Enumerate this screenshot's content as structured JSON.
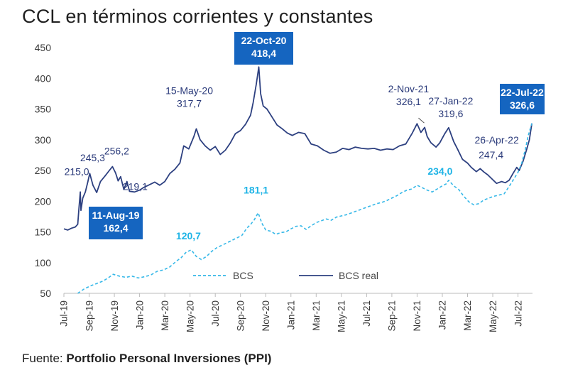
{
  "title": "CCL en términos corrientes y constantes",
  "source": {
    "label": "Fuente:",
    "text": "Portfolio Personal Inversiones (PPI)"
  },
  "colors": {
    "real": "#2d4080",
    "bcs": "#36b8e8",
    "box": "#1565c0",
    "axis": "#bbbbbb"
  },
  "chart_data": {
    "type": "line",
    "title": "CCL en términos corrientes y constantes",
    "xlabel": "",
    "ylabel": "",
    "ylim": [
      50,
      450
    ],
    "yticks": [
      50,
      100,
      150,
      200,
      250,
      300,
      350,
      400,
      450
    ],
    "xticks": [
      {
        "label": "Jul-19",
        "t": 0
      },
      {
        "label": "Sep-19",
        "t": 2
      },
      {
        "label": "Nov-19",
        "t": 4
      },
      {
        "label": "Jan-20",
        "t": 6
      },
      {
        "label": "Mar-20",
        "t": 8
      },
      {
        "label": "May-20",
        "t": 10
      },
      {
        "label": "Jul-20",
        "t": 12
      },
      {
        "label": "Sep-20",
        "t": 14
      },
      {
        "label": "Nov-20",
        "t": 16
      },
      {
        "label": "Jan-21",
        "t": 18
      },
      {
        "label": "Mar-21",
        "t": 20
      },
      {
        "label": "May-21",
        "t": 22
      },
      {
        "label": "Jul-21",
        "t": 24
      },
      {
        "label": "Sep-21",
        "t": 26
      },
      {
        "label": "Nov-21",
        "t": 28
      },
      {
        "label": "Jan-22",
        "t": 30
      },
      {
        "label": "Mar-22",
        "t": 32
      },
      {
        "label": "May-22",
        "t": 34
      },
      {
        "label": "Jul-22",
        "t": 36
      }
    ],
    "x_unit": "months since Jul-2019",
    "series": [
      {
        "name": "BCS real",
        "style": "solid",
        "points": [
          [
            0.0,
            155
          ],
          [
            0.3,
            153
          ],
          [
            0.6,
            156
          ],
          [
            0.9,
            158
          ],
          [
            1.1,
            162.4
          ],
          [
            1.2,
            190
          ],
          [
            1.3,
            215
          ],
          [
            1.35,
            185
          ],
          [
            1.5,
            205
          ],
          [
            1.7,
            215
          ],
          [
            1.9,
            232
          ],
          [
            2.05,
            245.3
          ],
          [
            2.3,
            226
          ],
          [
            2.6,
            214
          ],
          [
            2.9,
            232
          ],
          [
            3.3,
            242
          ],
          [
            3.6,
            250
          ],
          [
            3.85,
            256.2
          ],
          [
            4.1,
            246
          ],
          [
            4.3,
            233
          ],
          [
            4.5,
            240
          ],
          [
            4.75,
            219.1
          ],
          [
            5.0,
            232
          ],
          [
            5.2,
            216
          ],
          [
            5.6,
            215
          ],
          [
            6.0,
            218
          ],
          [
            6.3,
            222
          ],
          [
            6.7,
            226
          ],
          [
            7.2,
            231
          ],
          [
            7.6,
            226
          ],
          [
            8.0,
            232
          ],
          [
            8.4,
            245
          ],
          [
            8.8,
            252
          ],
          [
            9.2,
            262
          ],
          [
            9.5,
            290
          ],
          [
            9.9,
            285
          ],
          [
            10.3,
            305
          ],
          [
            10.5,
            317.7
          ],
          [
            10.8,
            300
          ],
          [
            11.2,
            290
          ],
          [
            11.6,
            283
          ],
          [
            12.0,
            289
          ],
          [
            12.4,
            276
          ],
          [
            12.8,
            283
          ],
          [
            13.2,
            295
          ],
          [
            13.6,
            310
          ],
          [
            14.0,
            315
          ],
          [
            14.4,
            325
          ],
          [
            14.8,
            340
          ],
          [
            15.0,
            360
          ],
          [
            15.25,
            390
          ],
          [
            15.45,
            418.4
          ],
          [
            15.6,
            375
          ],
          [
            15.8,
            355
          ],
          [
            16.1,
            350
          ],
          [
            16.5,
            337
          ],
          [
            16.9,
            324
          ],
          [
            17.3,
            318
          ],
          [
            17.7,
            311
          ],
          [
            18.1,
            307
          ],
          [
            18.6,
            312
          ],
          [
            19.1,
            310
          ],
          [
            19.6,
            293
          ],
          [
            20.1,
            290
          ],
          [
            20.6,
            283
          ],
          [
            21.1,
            278
          ],
          [
            21.6,
            280
          ],
          [
            22.1,
            286
          ],
          [
            22.6,
            284
          ],
          [
            23.1,
            288
          ],
          [
            23.6,
            286
          ],
          [
            24.1,
            285
          ],
          [
            24.6,
            286
          ],
          [
            25.1,
            283
          ],
          [
            25.6,
            285
          ],
          [
            26.1,
            284
          ],
          [
            26.6,
            290
          ],
          [
            27.1,
            293
          ],
          [
            27.6,
            310
          ],
          [
            28.0,
            326.1
          ],
          [
            28.3,
            312
          ],
          [
            28.6,
            320
          ],
          [
            28.8,
            305
          ],
          [
            29.1,
            295
          ],
          [
            29.5,
            288
          ],
          [
            29.8,
            295
          ],
          [
            30.2,
            310
          ],
          [
            30.5,
            319.6
          ],
          [
            30.9,
            297
          ],
          [
            31.2,
            285
          ],
          [
            31.6,
            268
          ],
          [
            32.0,
            262
          ],
          [
            32.3,
            255
          ],
          [
            32.7,
            248
          ],
          [
            33.0,
            253
          ],
          [
            33.3,
            247.4
          ],
          [
            33.6,
            243
          ],
          [
            34.0,
            235
          ],
          [
            34.3,
            229
          ],
          [
            34.7,
            232
          ],
          [
            35.0,
            230
          ],
          [
            35.3,
            234
          ],
          [
            35.6,
            245
          ],
          [
            35.9,
            255
          ],
          [
            36.1,
            250
          ],
          [
            36.4,
            265
          ],
          [
            36.7,
            285
          ],
          [
            36.9,
            300
          ],
          [
            37.1,
            326.6
          ]
        ]
      },
      {
        "name": "BCS",
        "style": "dashed",
        "points": [
          [
            1.1,
            50
          ],
          [
            1.6,
            57
          ],
          [
            2.1,
            62
          ],
          [
            2.6,
            66
          ],
          [
            3.1,
            70
          ],
          [
            3.5,
            75
          ],
          [
            3.9,
            81
          ],
          [
            4.4,
            78
          ],
          [
            4.9,
            76
          ],
          [
            5.4,
            78
          ],
          [
            5.9,
            75
          ],
          [
            6.4,
            77
          ],
          [
            6.9,
            80
          ],
          [
            7.4,
            86
          ],
          [
            7.9,
            88
          ],
          [
            8.4,
            93
          ],
          [
            8.9,
            102
          ],
          [
            9.3,
            108
          ],
          [
            9.7,
            117
          ],
          [
            10.1,
            120.7
          ],
          [
            10.5,
            110
          ],
          [
            10.9,
            105
          ],
          [
            11.3,
            110
          ],
          [
            11.7,
            118
          ],
          [
            12.1,
            124
          ],
          [
            12.5,
            128
          ],
          [
            12.9,
            132
          ],
          [
            13.3,
            136
          ],
          [
            13.7,
            140
          ],
          [
            14.1,
            144
          ],
          [
            14.5,
            156
          ],
          [
            14.8,
            162
          ],
          [
            15.1,
            170
          ],
          [
            15.4,
            181.1
          ],
          [
            15.7,
            164
          ],
          [
            16.0,
            153
          ],
          [
            16.4,
            151
          ],
          [
            16.8,
            146
          ],
          [
            17.2,
            149
          ],
          [
            17.6,
            150
          ],
          [
            18.0,
            155
          ],
          [
            18.4,
            159
          ],
          [
            18.8,
            160
          ],
          [
            19.2,
            154
          ],
          [
            19.6,
            160
          ],
          [
            20.0,
            165
          ],
          [
            20.4,
            168
          ],
          [
            20.8,
            171
          ],
          [
            21.2,
            169
          ],
          [
            21.6,
            174
          ],
          [
            22.0,
            176
          ],
          [
            22.4,
            178
          ],
          [
            22.8,
            181
          ],
          [
            23.2,
            184
          ],
          [
            23.6,
            187
          ],
          [
            24.0,
            190
          ],
          [
            24.4,
            193
          ],
          [
            24.8,
            196
          ],
          [
            25.2,
            198
          ],
          [
            25.6,
            201
          ],
          [
            26.0,
            205
          ],
          [
            26.4,
            209
          ],
          [
            26.8,
            214
          ],
          [
            27.2,
            218
          ],
          [
            27.6,
            220
          ],
          [
            28.0,
            226
          ],
          [
            28.4,
            222
          ],
          [
            28.8,
            218
          ],
          [
            29.2,
            215
          ],
          [
            29.6,
            220
          ],
          [
            30.0,
            225
          ],
          [
            30.3,
            228
          ],
          [
            30.5,
            234.0
          ],
          [
            30.9,
            225
          ],
          [
            31.3,
            219
          ],
          [
            31.7,
            208
          ],
          [
            32.1,
            199
          ],
          [
            32.5,
            194
          ],
          [
            32.9,
            196
          ],
          [
            33.3,
            202
          ],
          [
            33.7,
            205
          ],
          [
            34.1,
            208
          ],
          [
            34.5,
            210
          ],
          [
            34.9,
            212
          ],
          [
            35.3,
            224
          ],
          [
            35.7,
            237
          ],
          [
            36.0,
            247
          ],
          [
            36.3,
            262
          ],
          [
            36.6,
            286
          ],
          [
            36.8,
            306
          ],
          [
            37.1,
            326.6
          ]
        ]
      }
    ],
    "annotations": [
      {
        "series": "BCS real",
        "t": 1.3,
        "label": "215,0"
      },
      {
        "series": "BCS real",
        "t": 2.05,
        "label": "245,3"
      },
      {
        "series": "BCS real",
        "t": 3.85,
        "label": "256,2"
      },
      {
        "series": "BCS real",
        "t": 4.75,
        "label": "219,1"
      },
      {
        "series": "BCS real",
        "t": 10.5,
        "label": "15-May-20"
      },
      {
        "series": "BCS real",
        "t": 10.5,
        "label": "317,7"
      },
      {
        "series": "BCS real",
        "t": 28.0,
        "label": "2-Nov-21"
      },
      {
        "series": "BCS real",
        "t": 28.0,
        "label": "326,1"
      },
      {
        "series": "BCS real",
        "t": 30.5,
        "label": "27-Jan-22"
      },
      {
        "series": "BCS real",
        "t": 30.5,
        "label": "319,6"
      },
      {
        "series": "BCS real",
        "t": 33.3,
        "label": "26-Apr-22"
      },
      {
        "series": "BCS real",
        "t": 33.3,
        "label": "247,4"
      },
      {
        "series": "BCS",
        "t": 10.1,
        "label": "120,7"
      },
      {
        "series": "BCS",
        "t": 15.4,
        "label": "181,1"
      },
      {
        "series": "BCS",
        "t": 30.5,
        "label": "234,0"
      }
    ],
    "boxes": [
      {
        "date": "11-Aug-19",
        "value": "162,4"
      },
      {
        "date": "22-Oct-20",
        "value": "418,4"
      },
      {
        "date": "22-Jul-22",
        "value": "326,6"
      }
    ],
    "legend": [
      {
        "label": "BCS",
        "style": "dashed"
      },
      {
        "label": "BCS real",
        "style": "solid"
      }
    ],
    "legend_position": "bottom-center"
  }
}
